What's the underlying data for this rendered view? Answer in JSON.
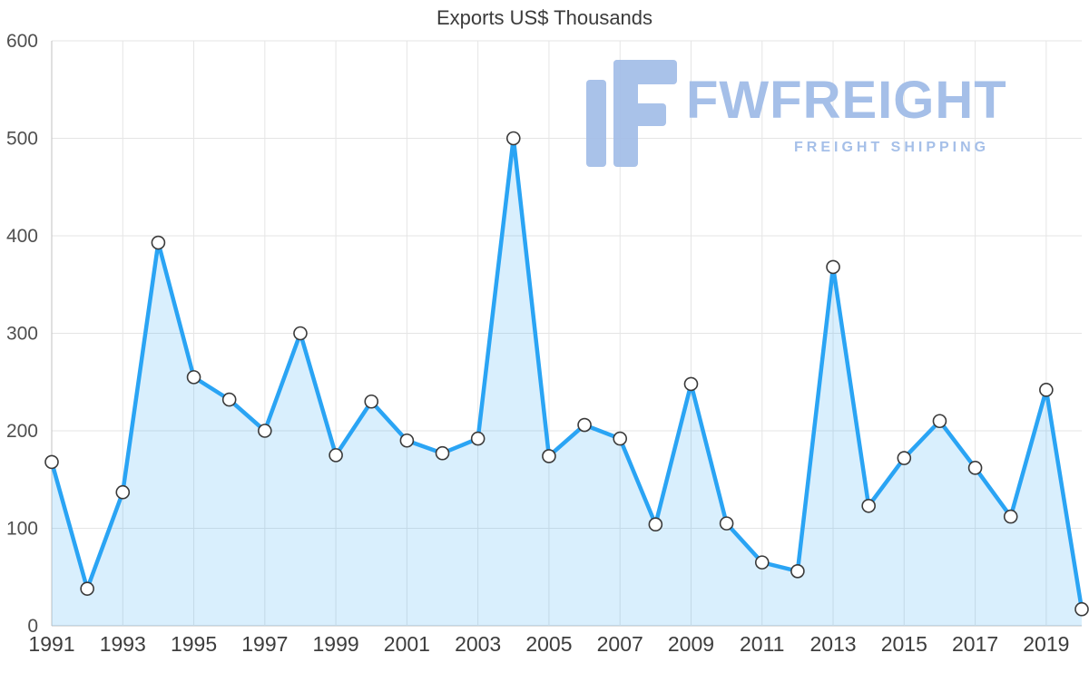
{
  "title": "Exports US$ Thousands",
  "logo": {
    "brand": "FWFREIGHT",
    "tagline": "FREIGHT SHIPPING",
    "color": "#a5bfe8"
  },
  "chart_data": {
    "type": "area",
    "title": "Exports US$ Thousands",
    "x": [
      1991,
      1992,
      1993,
      1994,
      1995,
      1996,
      1997,
      1998,
      1999,
      2000,
      2001,
      2002,
      2003,
      2004,
      2005,
      2006,
      2007,
      2008,
      2009,
      2010,
      2011,
      2012,
      2013,
      2014,
      2015,
      2016,
      2017,
      2018,
      2019,
      2020
    ],
    "values": [
      168,
      38,
      137,
      393,
      255,
      232,
      200,
      300,
      175,
      230,
      190,
      177,
      192,
      500,
      174,
      206,
      192,
      104,
      248,
      105,
      65,
      56,
      368,
      123,
      172,
      210,
      162,
      112,
      242,
      17
    ],
    "ylabel": "",
    "xlabel": "",
    "ylim": [
      0,
      600
    ],
    "yticks": [
      0,
      100,
      200,
      300,
      400,
      500,
      600
    ],
    "xticks": [
      1991,
      1993,
      1995,
      1997,
      1999,
      2001,
      2003,
      2005,
      2007,
      2009,
      2011,
      2013,
      2015,
      2017,
      2019
    ],
    "grid": true,
    "legend": "none",
    "line_color": "#2aa4f4",
    "fill_color": "rgba(42,164,244,0.18)",
    "marker_fill": "#ffffff",
    "marker_stroke": "#3a3a3a",
    "gridline_color": "#e5e5e5",
    "axis_color": "#c2c2c2"
  }
}
